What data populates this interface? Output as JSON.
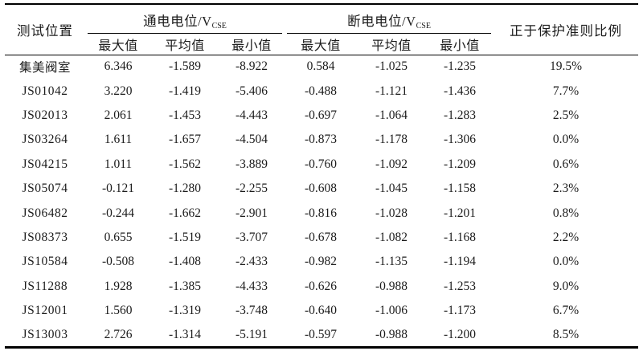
{
  "table": {
    "col1_header": "测试位置",
    "group1": {
      "label": "通电电位/V",
      "sub": "CSE"
    },
    "group2": {
      "label": "断电电位/V",
      "sub": "CSE"
    },
    "subheaders": [
      "最大值",
      "平均值",
      "最小值",
      "最大值",
      "平均值",
      "最小值"
    ],
    "last_header": "正于保护准则比例",
    "row_keys": [
      "loc",
      "on_max",
      "on_avg",
      "on_min",
      "off_max",
      "off_avg",
      "off_min",
      "pct"
    ],
    "rows": [
      {
        "loc": "集美阀室",
        "on_max": "6.346",
        "on_avg": "-1.589",
        "on_min": "-8.922",
        "off_max": "0.584",
        "off_avg": "-1.025",
        "off_min": "-1.235",
        "pct": "19.5%"
      },
      {
        "loc": "JS01042",
        "on_max": "3.220",
        "on_avg": "-1.419",
        "on_min": "-5.406",
        "off_max": "-0.488",
        "off_avg": "-1.121",
        "off_min": "-1.436",
        "pct": "7.7%"
      },
      {
        "loc": "JS02013",
        "on_max": "2.061",
        "on_avg": "-1.453",
        "on_min": "-4.443",
        "off_max": "-0.697",
        "off_avg": "-1.064",
        "off_min": "-1.283",
        "pct": "2.5%"
      },
      {
        "loc": "JS03264",
        "on_max": "1.611",
        "on_avg": "-1.657",
        "on_min": "-4.504",
        "off_max": "-0.873",
        "off_avg": "-1.178",
        "off_min": "-1.306",
        "pct": "0.0%"
      },
      {
        "loc": "JS04215",
        "on_max": "1.011",
        "on_avg": "-1.562",
        "on_min": "-3.889",
        "off_max": "-0.760",
        "off_avg": "-1.092",
        "off_min": "-1.209",
        "pct": "0.6%"
      },
      {
        "loc": "JS05074",
        "on_max": "-0.121",
        "on_avg": "-1.280",
        "on_min": "-2.255",
        "off_max": "-0.608",
        "off_avg": "-1.045",
        "off_min": "-1.158",
        "pct": "2.3%"
      },
      {
        "loc": "JS06482",
        "on_max": "-0.244",
        "on_avg": "-1.662",
        "on_min": "-2.901",
        "off_max": "-0.816",
        "off_avg": "-1.028",
        "off_min": "-1.201",
        "pct": "0.8%"
      },
      {
        "loc": "JS08373",
        "on_max": "0.655",
        "on_avg": "-1.519",
        "on_min": "-3.707",
        "off_max": "-0.678",
        "off_avg": "-1.082",
        "off_min": "-1.168",
        "pct": "2.2%"
      },
      {
        "loc": "JS10584",
        "on_max": "-0.508",
        "on_avg": "-1.408",
        "on_min": "-2.433",
        "off_max": "-0.982",
        "off_avg": "-1.135",
        "off_min": "-1.194",
        "pct": "0.0%"
      },
      {
        "loc": "JS11288",
        "on_max": "1.928",
        "on_avg": "-1.385",
        "on_min": "-4.433",
        "off_max": "-0.626",
        "off_avg": "-0.988",
        "off_min": "-1.253",
        "pct": "9.0%"
      },
      {
        "loc": "JS12001",
        "on_max": "1.560",
        "on_avg": "-1.319",
        "on_min": "-3.748",
        "off_max": "-0.640",
        "off_avg": "-1.006",
        "off_min": "-1.173",
        "pct": "6.7%"
      },
      {
        "loc": "JS13003",
        "on_max": "2.726",
        "on_avg": "-1.314",
        "on_min": "-5.191",
        "off_max": "-0.597",
        "off_avg": "-0.988",
        "off_min": "-1.200",
        "pct": "8.5%"
      }
    ]
  }
}
